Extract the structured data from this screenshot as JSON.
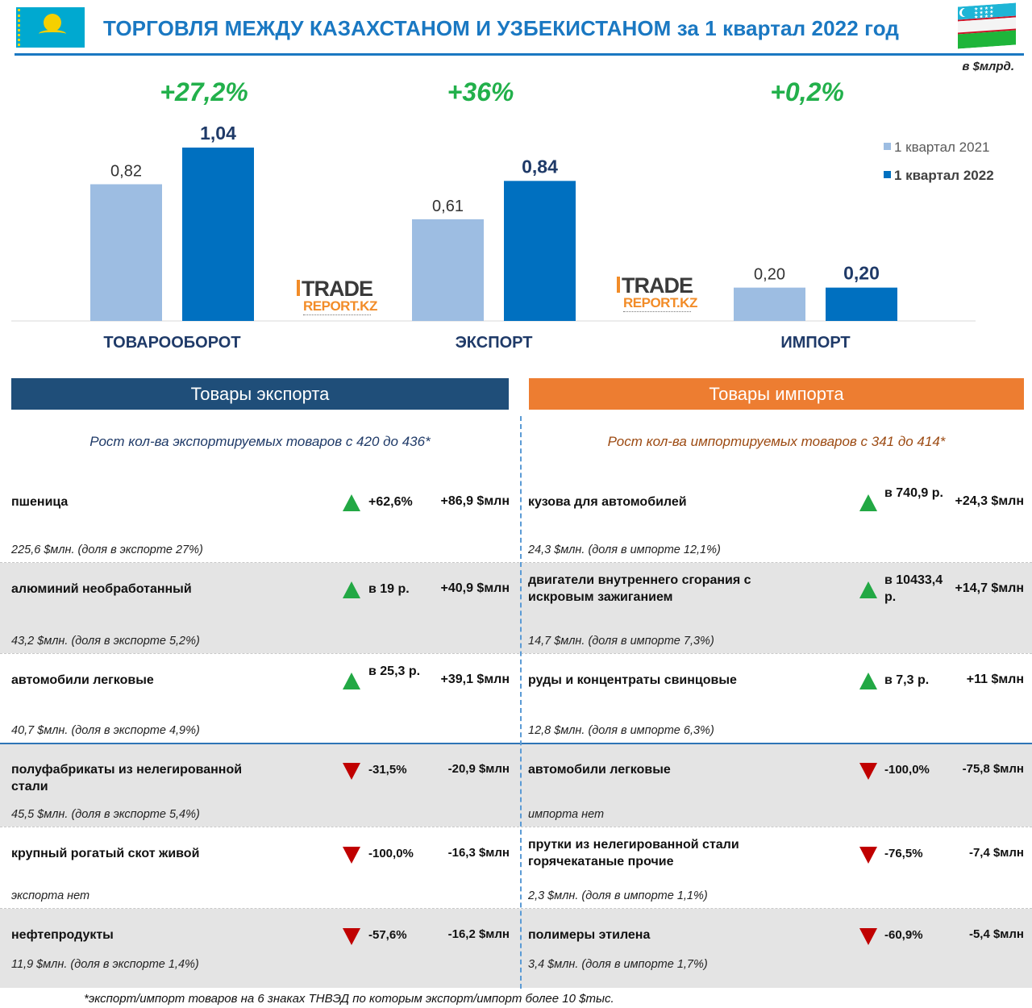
{
  "header": {
    "title": "ТОРГОВЛЯ МЕЖДУ КАЗАХСТАНОМ И УЗБЕКИСТАНОМ за 1 квартал 2022 год",
    "units": "в $млрд."
  },
  "watermark": {
    "line1": "TRADE",
    "line2": "REPORT.KZ"
  },
  "chart_data": {
    "type": "bar",
    "categories": [
      "ТОВАРООБОРОТ",
      "ЭКСПОРТ",
      "ИМПОРТ"
    ],
    "series": [
      {
        "name": "1 квартал 2021",
        "values": [
          0.82,
          0.61,
          0.2
        ],
        "labels": [
          "0,82",
          "0,61",
          "0,20"
        ],
        "color": "#9dbde2"
      },
      {
        "name": "1 квартал 2022",
        "values": [
          1.04,
          0.84,
          0.2
        ],
        "labels": [
          "1,04",
          "0,84",
          "0,20"
        ],
        "color": "#0070c0"
      }
    ],
    "growth": [
      "+27,2%",
      "+36%",
      "+0,2%"
    ],
    "growth_color": "#22b04b",
    "legend_position": "right",
    "ylim": [
      0,
      1.04
    ]
  },
  "sections": {
    "export": {
      "header": "Товары экспорта",
      "subtitle": "Рост кол-ва экспортируемых товаров с 420 до 436*",
      "rows": [
        {
          "name": "пшеница",
          "dir": "up",
          "pct": "+62,6%",
          "abs": "+86,9 $млн",
          "note": "225,6 $млн. (доля в экспорте 27%)"
        },
        {
          "name": "алюминий необработанный",
          "dir": "up",
          "pct": "в 19 р.",
          "abs": "+40,9 $млн",
          "note": "43,2 $млн. (доля в экспорте 5,2%)"
        },
        {
          "name": "автомобили легковые",
          "dir": "up",
          "pct": "в 25,3 р.",
          "abs": "+39,1 $млн",
          "note": "40,7 $млн. (доля в экспорте 4,9%)"
        },
        {
          "name": "полуфабрикаты из нелегированной стали",
          "dir": "down",
          "pct": "-31,5%",
          "abs": "-20,9 $млн",
          "note": "45,5 $млн. (доля в экспорте 5,4%)"
        },
        {
          "name": "крупный рогатый скот живой",
          "dir": "down",
          "pct": "-100,0%",
          "abs": "-16,3 $млн",
          "note": "экспорта нет"
        },
        {
          "name": "нефтепродукты",
          "dir": "down",
          "pct": "-57,6%",
          "abs": "-16,2 $млн",
          "note": "11,9 $млн. (доля в экспорте 1,4%)"
        }
      ]
    },
    "import": {
      "header": "Товары импорта",
      "subtitle": "Рост кол-ва импортируемых товаров с 341 до 414*",
      "rows": [
        {
          "name": "кузова для автомобилей",
          "dir": "up",
          "pct": "в 740,9 р.",
          "abs": "+24,3 $млн",
          "note": "24,3 $млн. (доля в импорте 12,1%)"
        },
        {
          "name": "двигатели внутреннего сгорания с искровым зажиганием",
          "dir": "up",
          "pct": "в 10433,4 р.",
          "abs": "+14,7 $млн",
          "note": "14,7 $млн. (доля в импорте 7,3%)"
        },
        {
          "name": "руды и концентраты свинцовые",
          "dir": "up",
          "pct": "в 7,3 р.",
          "abs": "+11 $млн",
          "note": "12,8 $млн. (доля в импорте 6,3%)"
        },
        {
          "name": "автомобили легковые",
          "dir": "down",
          "pct": "-100,0%",
          "abs": "-75,8 $млн",
          "note": "импорта нет"
        },
        {
          "name": "прутки из нелегированной стали горячекатаные прочие",
          "dir": "down",
          "pct": "-76,5%",
          "abs": "-7,4 $млн",
          "note": "2,3 $млн. (доля в импорте 1,1%)"
        },
        {
          "name": "полимеры этилена",
          "dir": "down",
          "pct": "-60,9%",
          "abs": "-5,4 $млн",
          "note": "3,4 $млн. (доля в импорте 1,7%)"
        }
      ]
    }
  },
  "footnote": "*экспорт/импорт товаров на 6 знаках ТНВЭД по которым экспорт/импорт более 10 $тыс."
}
